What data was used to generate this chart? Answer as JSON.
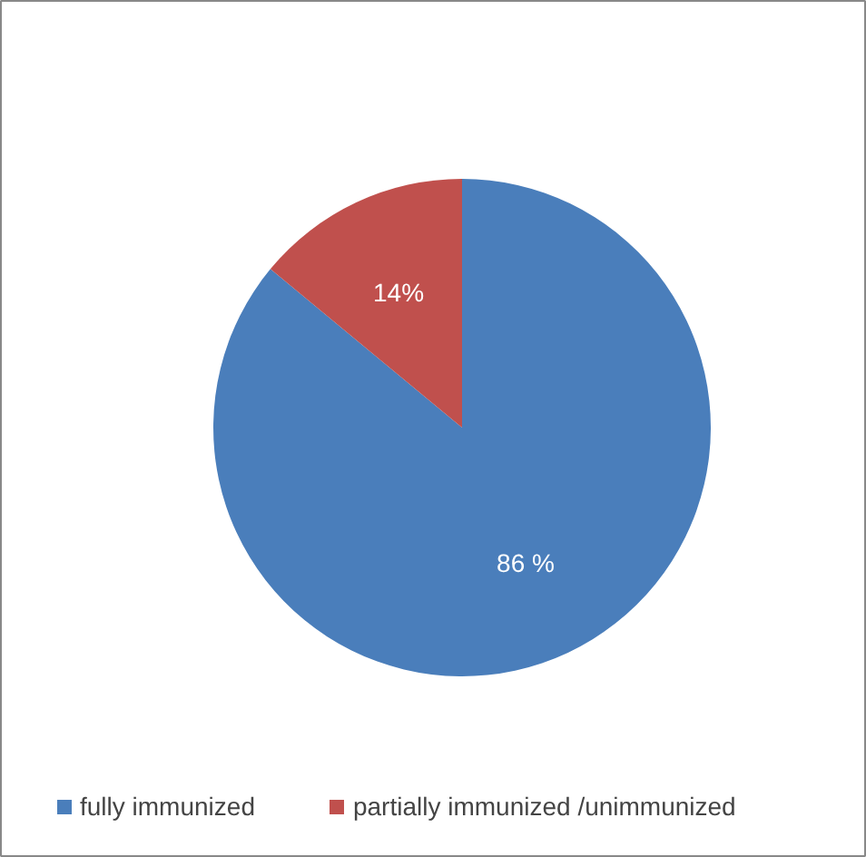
{
  "chart_data": {
    "type": "pie",
    "categories": [
      "fully immunized",
      "partially immunized /unimmunized"
    ],
    "values": [
      86,
      14
    ],
    "colors": [
      "#4a7ebb",
      "#c0504d"
    ],
    "value_labels": [
      "86 %",
      "14%"
    ],
    "legend": "bottom"
  }
}
